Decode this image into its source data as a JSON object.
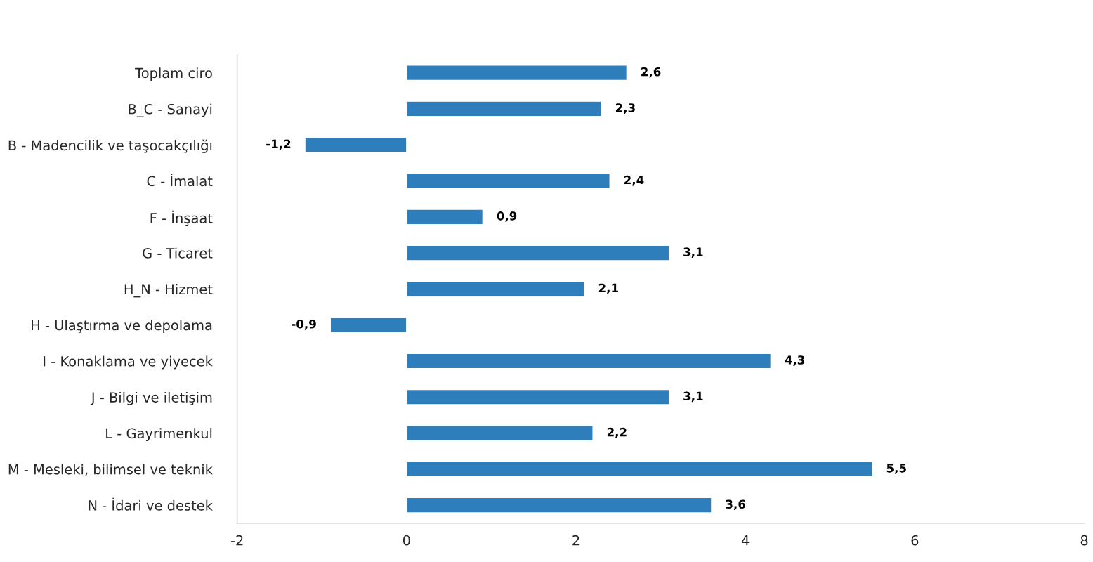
{
  "chart_data": {
    "type": "bar",
    "orientation": "horizontal",
    "categories": [
      "Toplam ciro",
      "B_C - Sanayi",
      "B - Madencilik ve taşocakçılığı",
      "C - İmalat",
      "F - İnşaat",
      "G - Ticaret",
      "H_N - Hizmet",
      "H - Ulaştırma ve depolama",
      "I - Konaklama ve yiyecek",
      "J - Bilgi ve iletişim",
      "L - Gayrimenkul",
      "M - Mesleki, bilimsel ve teknik",
      "N - İdari ve destek"
    ],
    "values": [
      2.6,
      2.3,
      -1.2,
      2.4,
      0.9,
      3.1,
      2.1,
      -0.9,
      4.3,
      3.1,
      2.2,
      5.5,
      3.6
    ],
    "value_labels": [
      "2,6",
      "2,3",
      "-1,2",
      "2,4",
      "0,9",
      "3,1",
      "2,1",
      "-0,9",
      "4,3",
      "3,1",
      "2,2",
      "5,5",
      "3,6"
    ],
    "color": "#2e7ebb",
    "xlim": [
      -2,
      8
    ],
    "xticks": [
      -2,
      0,
      2,
      4,
      6,
      8
    ],
    "grid": false,
    "legend": false
  }
}
